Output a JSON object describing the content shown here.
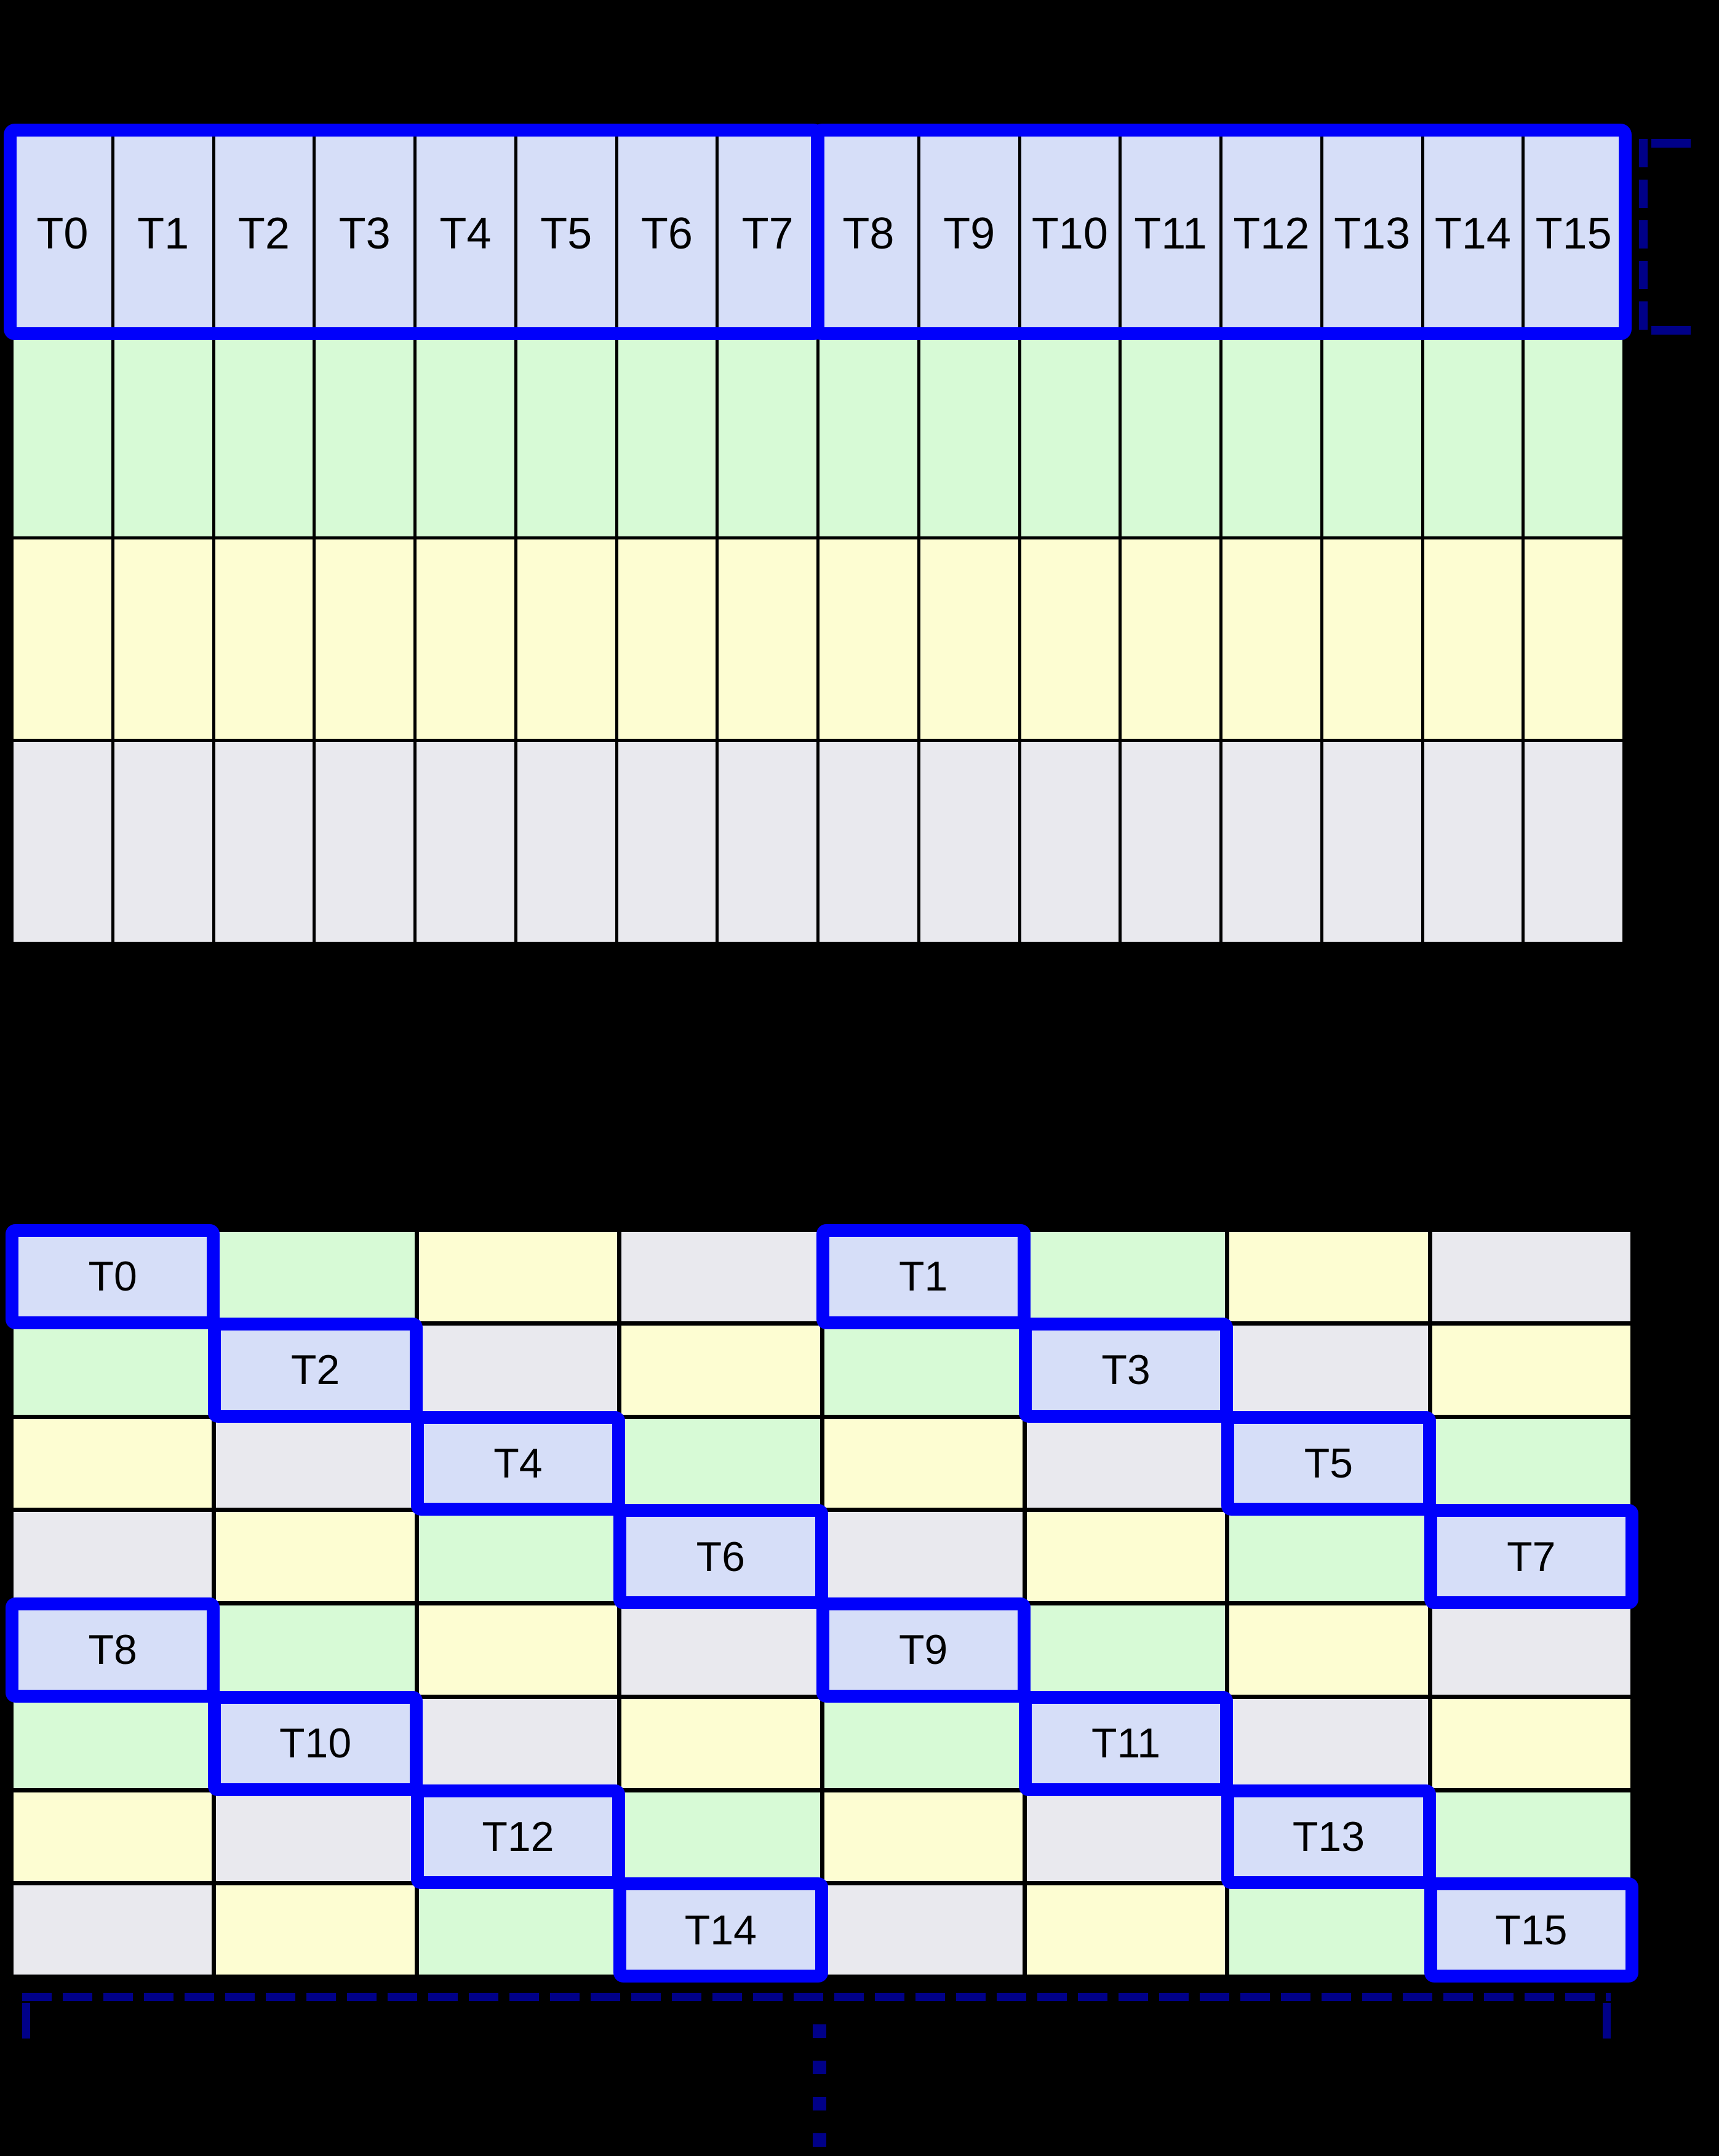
{
  "colors": {
    "cell_blue": "#d6def8",
    "cell_green": "#d7fad6",
    "cell_yellow": "#fdfdd2",
    "cell_gray": "#e9e9ee",
    "highlight": "#0000fb",
    "bracket": "#000088",
    "grid_line": "#000000",
    "label_text": "#000000",
    "background": "#000000"
  },
  "top_grid": {
    "columns": 16,
    "group_size": 8,
    "thread_labels": [
      "T0",
      "T1",
      "T2",
      "T3",
      "T4",
      "T5",
      "T6",
      "T7",
      "T8",
      "T9",
      "T10",
      "T11",
      "T12",
      "T13",
      "T14",
      "T15"
    ],
    "data_row_colors": [
      "green",
      "yellow",
      "gray"
    ]
  },
  "bottom_grid": {
    "columns": 8,
    "rows": [
      {
        "cells": [
          {
            "color": "blue",
            "label": "T0"
          },
          {
            "color": "green"
          },
          {
            "color": "yellow"
          },
          {
            "color": "gray"
          },
          {
            "color": "blue",
            "label": "T1"
          },
          {
            "color": "green"
          },
          {
            "color": "yellow"
          },
          {
            "color": "gray"
          }
        ]
      },
      {
        "cells": [
          {
            "color": "green"
          },
          {
            "color": "blue",
            "label": "T2"
          },
          {
            "color": "gray"
          },
          {
            "color": "yellow"
          },
          {
            "color": "green"
          },
          {
            "color": "blue",
            "label": "T3"
          },
          {
            "color": "gray"
          },
          {
            "color": "yellow"
          }
        ]
      },
      {
        "cells": [
          {
            "color": "yellow"
          },
          {
            "color": "gray"
          },
          {
            "color": "blue",
            "label": "T4"
          },
          {
            "color": "green"
          },
          {
            "color": "yellow"
          },
          {
            "color": "gray"
          },
          {
            "color": "blue",
            "label": "T5"
          },
          {
            "color": "green"
          }
        ]
      },
      {
        "cells": [
          {
            "color": "gray"
          },
          {
            "color": "yellow"
          },
          {
            "color": "green"
          },
          {
            "color": "blue",
            "label": "T6"
          },
          {
            "color": "gray"
          },
          {
            "color": "yellow"
          },
          {
            "color": "green"
          },
          {
            "color": "blue",
            "label": "T7"
          }
        ]
      },
      {
        "cells": [
          {
            "color": "blue",
            "label": "T8"
          },
          {
            "color": "green"
          },
          {
            "color": "yellow"
          },
          {
            "color": "gray"
          },
          {
            "color": "blue",
            "label": "T9"
          },
          {
            "color": "green"
          },
          {
            "color": "yellow"
          },
          {
            "color": "gray"
          }
        ]
      },
      {
        "cells": [
          {
            "color": "green"
          },
          {
            "color": "blue",
            "label": "T10"
          },
          {
            "color": "gray"
          },
          {
            "color": "yellow"
          },
          {
            "color": "green"
          },
          {
            "color": "blue",
            "label": "T11"
          },
          {
            "color": "gray"
          },
          {
            "color": "yellow"
          }
        ]
      },
      {
        "cells": [
          {
            "color": "yellow"
          },
          {
            "color": "gray"
          },
          {
            "color": "blue",
            "label": "T12"
          },
          {
            "color": "green"
          },
          {
            "color": "yellow"
          },
          {
            "color": "gray"
          },
          {
            "color": "blue",
            "label": "T13"
          },
          {
            "color": "green"
          }
        ]
      },
      {
        "cells": [
          {
            "color": "gray"
          },
          {
            "color": "yellow"
          },
          {
            "color": "green"
          },
          {
            "color": "blue",
            "label": "T14"
          },
          {
            "color": "gray"
          },
          {
            "color": "yellow"
          },
          {
            "color": "green"
          },
          {
            "color": "blue",
            "label": "T15"
          }
        ]
      }
    ]
  }
}
